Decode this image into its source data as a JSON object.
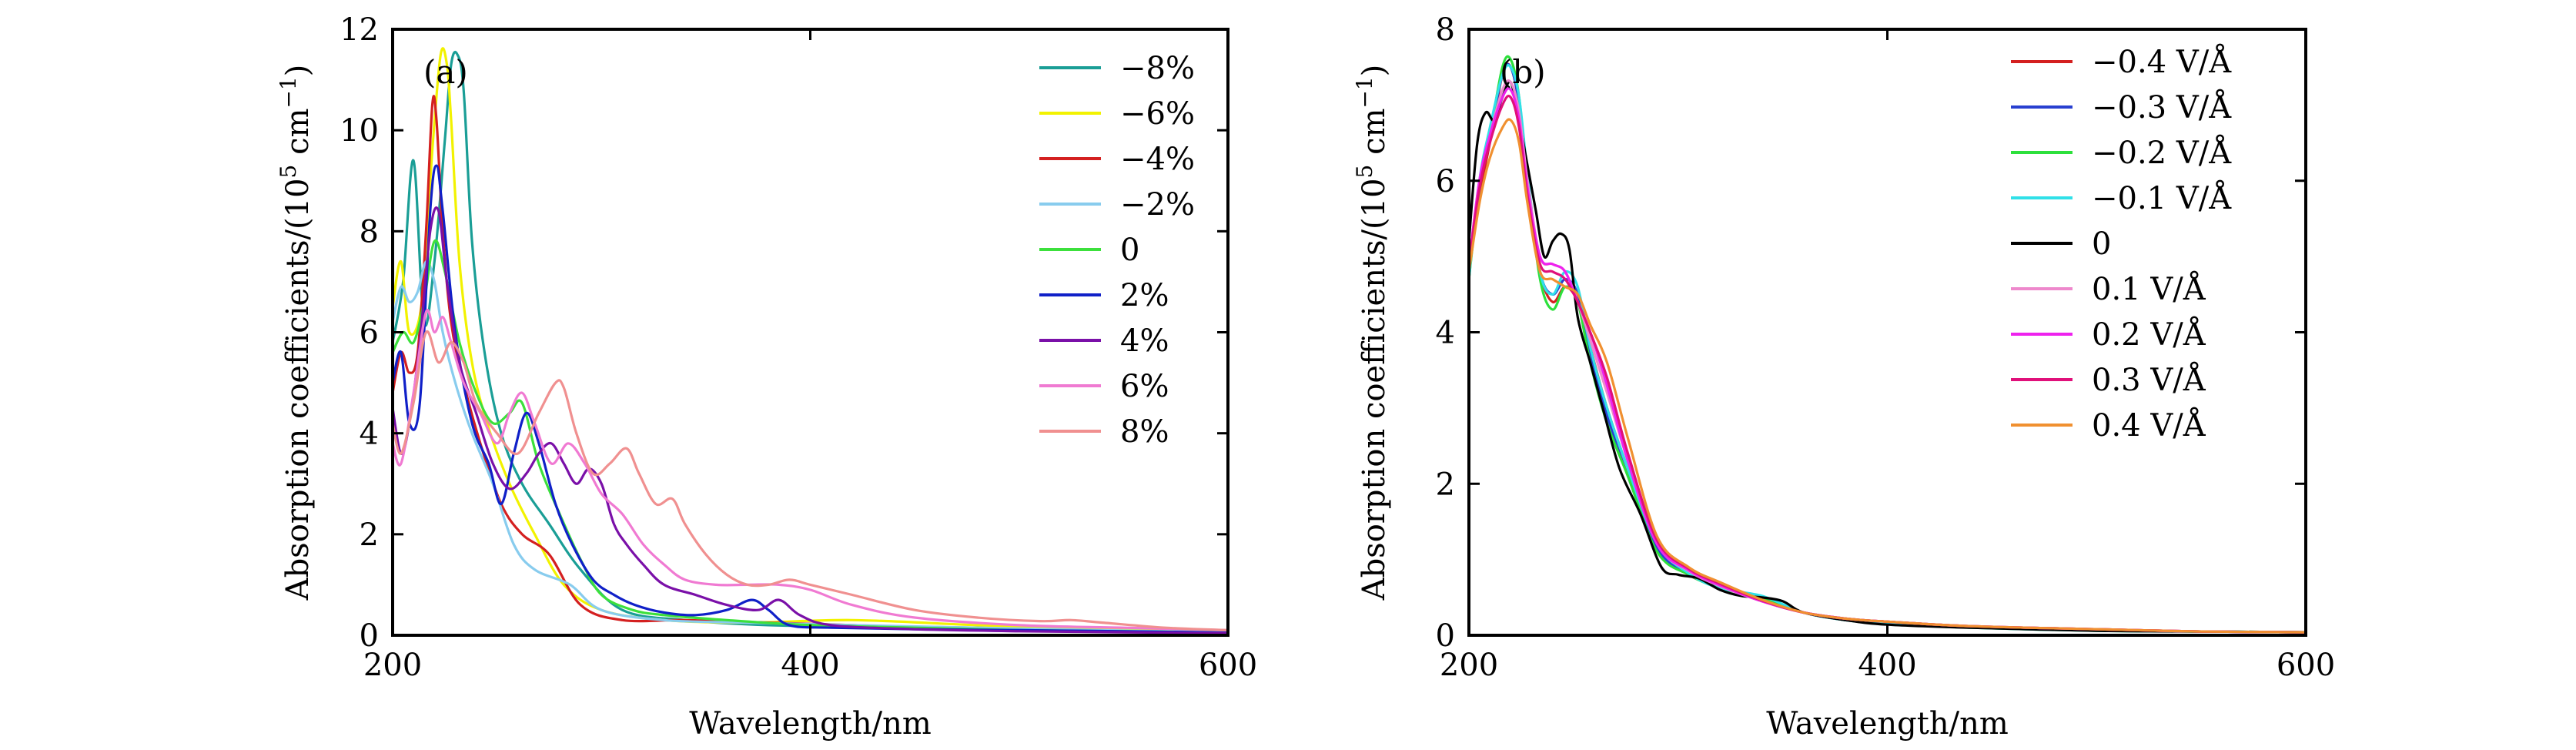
{
  "chart_data": [
    {
      "type": "line",
      "panel_label": "(a)",
      "xlabel": "Wavelength/nm",
      "ylabel_text": "Absorption coefficients/(10",
      "ylabel_sup1": "5",
      "ylabel_mid": " cm",
      "ylabel_sup2": "−1",
      "ylabel_end": ")",
      "xlim": [
        200,
        600
      ],
      "ylim": [
        0,
        12
      ],
      "xticks": [
        200,
        400,
        600
      ],
      "yticks": [
        0,
        2,
        4,
        6,
        8,
        10,
        12
      ],
      "grid": false,
      "legend_position": "top-right",
      "series": [
        {
          "name": "−8%",
          "color": "#1a9e96",
          "x": [
            200,
            205,
            210,
            215,
            220,
            225,
            228,
            231,
            234,
            238,
            244,
            252,
            262,
            275,
            290,
            310,
            340,
            380,
            420,
            480,
            540,
            600
          ],
          "y": [
            5.8,
            7.0,
            9.4,
            6.2,
            7.4,
            9.8,
            11.3,
            11.5,
            10.8,
            7.8,
            5.6,
            4.0,
            3.0,
            2.2,
            1.3,
            0.5,
            0.3,
            0.2,
            0.18,
            0.15,
            0.1,
            0.06
          ]
        },
        {
          "name": "−6%",
          "color": "#f2f200",
          "x": [
            200,
            204,
            208,
            214,
            219,
            223,
            226,
            228,
            232,
            238,
            246,
            256,
            268,
            282,
            300,
            330,
            370,
            420,
            480,
            540,
            600
          ],
          "y": [
            6.5,
            7.4,
            6.0,
            6.6,
            9.6,
            11.5,
            11.3,
            10.2,
            7.4,
            5.4,
            4.1,
            3.0,
            2.0,
            1.0,
            0.5,
            0.3,
            0.25,
            0.3,
            0.2,
            0.12,
            0.06
          ]
        },
        {
          "name": "−4%",
          "color": "#d42020",
          "x": [
            200,
            204,
            208,
            212,
            216,
            219,
            221,
            224,
            228,
            234,
            242,
            252,
            262,
            275,
            290,
            310,
            340,
            380,
            420,
            480,
            540,
            600
          ],
          "y": [
            4.8,
            5.6,
            5.2,
            5.6,
            8.0,
            10.5,
            10.2,
            8.0,
            6.2,
            5.0,
            3.8,
            2.6,
            2.0,
            1.6,
            0.6,
            0.3,
            0.3,
            0.25,
            0.2,
            0.12,
            0.08,
            0.05
          ]
        },
        {
          "name": "−2%",
          "color": "#88ccee",
          "x": [
            200,
            204,
            208,
            212,
            216,
            220,
            224,
            230,
            238,
            248,
            258,
            268,
            285,
            300,
            330,
            370,
            420,
            480,
            540,
            600
          ],
          "y": [
            6.2,
            6.9,
            6.6,
            6.8,
            7.4,
            7.0,
            6.0,
            5.0,
            4.0,
            3.0,
            1.8,
            1.3,
            1.0,
            0.5,
            0.3,
            0.25,
            0.2,
            0.15,
            0.1,
            0.06
          ]
        },
        {
          "name": "0",
          "color": "#3ce03c",
          "x": [
            200,
            205,
            210,
            215,
            220,
            225,
            232,
            240,
            248,
            256,
            262,
            270,
            280,
            290,
            300,
            315,
            330,
            360,
            400,
            450,
            500,
            550,
            600
          ],
          "y": [
            5.6,
            6.0,
            5.8,
            6.6,
            7.8,
            7.2,
            5.8,
            4.8,
            4.2,
            4.4,
            4.6,
            3.4,
            2.4,
            1.5,
            0.8,
            0.5,
            0.4,
            0.3,
            0.2,
            0.15,
            0.1,
            0.08,
            0.05
          ]
        },
        {
          "name": "2%",
          "color": "#1020c8",
          "x": [
            200,
            204,
            208,
            213,
            218,
            221,
            224,
            230,
            238,
            246,
            252,
            258,
            264,
            270,
            278,
            286,
            296,
            306,
            316,
            330,
            345,
            360,
            372,
            380,
            390,
            410,
            450,
            500,
            550,
            600
          ],
          "y": [
            5.0,
            5.6,
            4.2,
            4.6,
            8.4,
            9.3,
            8.4,
            6.0,
            4.2,
            3.4,
            2.6,
            3.6,
            4.4,
            3.8,
            2.6,
            1.8,
            1.1,
            0.8,
            0.6,
            0.45,
            0.4,
            0.5,
            0.7,
            0.5,
            0.2,
            0.15,
            0.12,
            0.1,
            0.08,
            0.05
          ]
        },
        {
          "name": "4%",
          "color": "#7a10a8",
          "x": [
            200,
            204,
            208,
            213,
            218,
            222,
            226,
            232,
            240,
            248,
            256,
            264,
            270,
            276,
            282,
            288,
            294,
            300,
            306,
            312,
            320,
            330,
            345,
            360,
            375,
            385,
            395,
            410,
            450,
            500,
            550,
            600
          ],
          "y": [
            4.5,
            3.6,
            4.2,
            5.8,
            8.0,
            8.4,
            7.0,
            5.4,
            4.4,
            3.4,
            2.9,
            3.2,
            3.6,
            3.8,
            3.4,
            3.0,
            3.3,
            3.0,
            2.2,
            1.8,
            1.4,
            1.0,
            0.8,
            0.6,
            0.5,
            0.7,
            0.4,
            0.2,
            0.12,
            0.08,
            0.06,
            0.04
          ]
        },
        {
          "name": "6%",
          "color": "#f07ad2",
          "x": [
            200,
            204,
            210,
            216,
            220,
            224,
            228,
            234,
            242,
            250,
            256,
            262,
            268,
            276,
            284,
            292,
            300,
            310,
            320,
            330,
            340,
            355,
            370,
            385,
            400,
            420,
            450,
            500,
            550,
            600
          ],
          "y": [
            3.8,
            3.4,
            4.8,
            6.4,
            6.0,
            6.3,
            5.8,
            5.0,
            4.4,
            3.8,
            4.4,
            4.8,
            4.2,
            3.4,
            3.8,
            3.4,
            2.8,
            2.4,
            1.8,
            1.4,
            1.1,
            1.0,
            1.0,
            1.0,
            0.9,
            0.6,
            0.35,
            0.2,
            0.15,
            0.1
          ]
        },
        {
          "name": "8%",
          "color": "#f09090",
          "x": [
            200,
            204,
            210,
            216,
            222,
            228,
            234,
            240,
            250,
            260,
            270,
            278,
            282,
            288,
            296,
            304,
            312,
            318,
            326,
            334,
            340,
            350,
            360,
            370,
            380,
            390,
            400,
            420,
            450,
            480,
            510,
            525,
            540,
            570,
            600
          ],
          "y": [
            4.2,
            3.6,
            4.6,
            6.0,
            5.4,
            5.8,
            5.4,
            4.6,
            4.0,
            3.6,
            4.4,
            5.0,
            4.9,
            4.0,
            3.2,
            3.4,
            3.7,
            3.2,
            2.6,
            2.7,
            2.2,
            1.6,
            1.2,
            1.0,
            1.0,
            1.1,
            1.0,
            0.8,
            0.5,
            0.35,
            0.28,
            0.3,
            0.25,
            0.15,
            0.1
          ]
        }
      ]
    },
    {
      "type": "line",
      "panel_label": "(b)",
      "xlabel": "Wavelength/nm",
      "ylabel_text": "Absorption coefficients/(10",
      "ylabel_sup1": "5",
      "ylabel_mid": " cm",
      "ylabel_sup2": "−1",
      "ylabel_end": ")",
      "xlim": [
        200,
        600
      ],
      "ylim": [
        0,
        8
      ],
      "xticks": [
        200,
        400,
        600
      ],
      "yticks": [
        0,
        2,
        4,
        6,
        8
      ],
      "grid": false,
      "legend_position": "top-right",
      "series": [
        {
          "name": "−0.4 V/Å",
          "color": "#d42020",
          "x": [
            200,
            205,
            210,
            216,
            220,
            224,
            228,
            234,
            240,
            246,
            252,
            258,
            266,
            276,
            290,
            305,
            320,
            340,
            360,
            380,
            400,
            440,
            500,
            550,
            600
          ],
          "y": [
            4.8,
            5.8,
            6.5,
            7.4,
            7.5,
            7.0,
            6.0,
            4.8,
            4.4,
            4.6,
            4.4,
            3.8,
            3.0,
            2.2,
            1.2,
            0.8,
            0.65,
            0.45,
            0.3,
            0.22,
            0.18,
            0.12,
            0.08,
            0.05,
            0.04
          ]
        },
        {
          "name": "−0.3 V/Å",
          "color": "#2840d0",
          "x": [
            200,
            205,
            210,
            216,
            220,
            224,
            228,
            234,
            240,
            246,
            252,
            258,
            266,
            276,
            290,
            305,
            320,
            340,
            360,
            380,
            400,
            440,
            500,
            550,
            600
          ],
          "y": [
            4.8,
            5.9,
            6.6,
            7.4,
            7.5,
            7.0,
            6.0,
            4.8,
            4.5,
            4.7,
            4.5,
            3.7,
            2.9,
            2.1,
            1.15,
            0.8,
            0.65,
            0.48,
            0.3,
            0.2,
            0.16,
            0.11,
            0.07,
            0.05,
            0.04
          ]
        },
        {
          "name": "−0.2 V/Å",
          "color": "#2de03c",
          "x": [
            200,
            205,
            210,
            216,
            220,
            224,
            228,
            234,
            240,
            246,
            252,
            258,
            266,
            276,
            290,
            305,
            320,
            340,
            360,
            380,
            400,
            440,
            500,
            550,
            600
          ],
          "y": [
            4.7,
            5.9,
            6.6,
            7.5,
            7.6,
            7.1,
            6.0,
            4.7,
            4.3,
            4.6,
            4.4,
            3.6,
            2.8,
            2.1,
            1.1,
            0.8,
            0.62,
            0.5,
            0.3,
            0.2,
            0.15,
            0.1,
            0.06,
            0.05,
            0.04
          ]
        },
        {
          "name": "−0.1 V/Å",
          "color": "#30e0e8",
          "x": [
            200,
            205,
            210,
            216,
            220,
            224,
            228,
            234,
            240,
            246,
            252,
            258,
            266,
            276,
            290,
            305,
            320,
            340,
            360,
            380,
            400,
            440,
            500,
            550,
            600
          ],
          "y": [
            4.7,
            6.0,
            6.7,
            7.4,
            7.5,
            7.1,
            6.1,
            4.8,
            4.5,
            4.8,
            4.6,
            3.8,
            3.0,
            2.2,
            1.2,
            0.82,
            0.62,
            0.52,
            0.3,
            0.2,
            0.15,
            0.1,
            0.06,
            0.05,
            0.04
          ]
        },
        {
          "name": "0",
          "color": "#000000",
          "x": [
            200,
            204,
            208,
            212,
            216,
            220,
            224,
            228,
            232,
            236,
            240,
            244,
            248,
            252,
            258,
            264,
            272,
            282,
            292,
            300,
            310,
            320,
            330,
            340,
            350,
            360,
            380,
            400,
            440,
            500,
            550,
            600
          ],
          "y": [
            5.2,
            6.5,
            6.9,
            6.8,
            7.1,
            7.3,
            6.8,
            6.2,
            5.6,
            5.0,
            5.2,
            5.3,
            5.1,
            4.2,
            3.6,
            3.0,
            2.2,
            1.6,
            0.9,
            0.8,
            0.75,
            0.6,
            0.52,
            0.5,
            0.45,
            0.3,
            0.2,
            0.14,
            0.1,
            0.06,
            0.05,
            0.04
          ]
        },
        {
          "name": "0.1 V/Å",
          "color": "#ee88cc",
          "x": [
            200,
            205,
            210,
            216,
            220,
            224,
            228,
            234,
            240,
            246,
            252,
            258,
            266,
            276,
            290,
            305,
            320,
            340,
            360,
            380,
            400,
            440,
            500,
            550,
            600
          ],
          "y": [
            4.9,
            6.0,
            6.6,
            7.2,
            7.3,
            6.9,
            6.0,
            5.0,
            4.9,
            4.8,
            4.4,
            3.9,
            3.2,
            2.3,
            1.2,
            0.85,
            0.65,
            0.45,
            0.3,
            0.22,
            0.18,
            0.12,
            0.08,
            0.05,
            0.04
          ]
        },
        {
          "name": "0.2 V/Å",
          "color": "#ee22ee",
          "x": [
            200,
            205,
            210,
            216,
            220,
            224,
            228,
            234,
            240,
            246,
            252,
            258,
            266,
            276,
            290,
            305,
            320,
            340,
            360,
            380,
            400,
            440,
            500,
            550,
            600
          ],
          "y": [
            4.9,
            6.0,
            6.6,
            7.1,
            7.2,
            6.8,
            5.9,
            5.0,
            4.9,
            4.8,
            4.4,
            4.0,
            3.3,
            2.3,
            1.2,
            0.86,
            0.66,
            0.45,
            0.3,
            0.22,
            0.18,
            0.12,
            0.08,
            0.05,
            0.04
          ]
        },
        {
          "name": "0.3 V/Å",
          "color": "#e0107a",
          "x": [
            200,
            205,
            210,
            216,
            220,
            224,
            228,
            234,
            240,
            246,
            252,
            258,
            266,
            276,
            290,
            305,
            320,
            340,
            360,
            380,
            400,
            440,
            500,
            550,
            600
          ],
          "y": [
            4.9,
            5.9,
            6.5,
            7.0,
            7.1,
            6.7,
            5.8,
            4.9,
            4.8,
            4.7,
            4.4,
            4.0,
            3.4,
            2.4,
            1.25,
            0.88,
            0.68,
            0.46,
            0.3,
            0.22,
            0.18,
            0.12,
            0.08,
            0.05,
            0.04
          ]
        },
        {
          "name": "0.4 V/Å",
          "color": "#f09030",
          "x": [
            200,
            205,
            210,
            216,
            220,
            224,
            228,
            234,
            240,
            246,
            252,
            258,
            266,
            276,
            290,
            305,
            320,
            340,
            360,
            380,
            400,
            440,
            500,
            550,
            600
          ],
          "y": [
            4.8,
            5.7,
            6.3,
            6.7,
            6.8,
            6.5,
            5.7,
            4.8,
            4.7,
            4.6,
            4.5,
            4.1,
            3.6,
            2.6,
            1.3,
            0.9,
            0.7,
            0.47,
            0.3,
            0.22,
            0.18,
            0.12,
            0.08,
            0.05,
            0.04
          ]
        }
      ]
    }
  ]
}
